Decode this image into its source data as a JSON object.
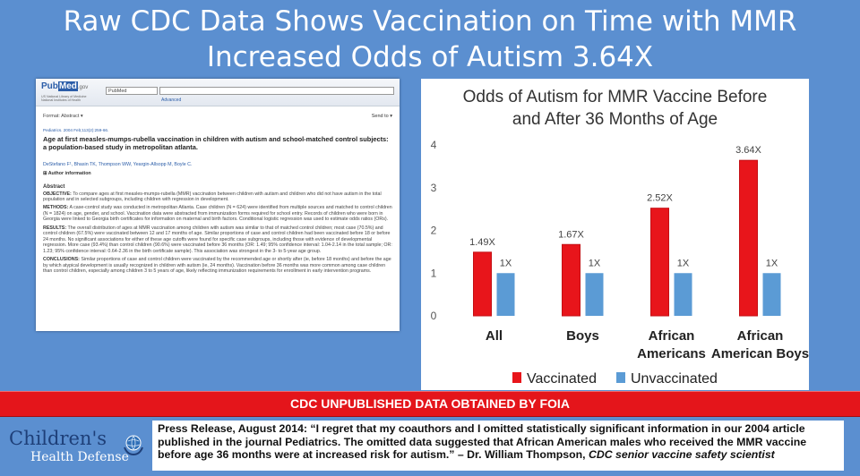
{
  "headline": "Raw CDC Data Shows Vaccination on Time with MMR Increased Odds of Autism 3.64X",
  "paper": {
    "logo_pub": "Pub",
    "logo_med": "Med",
    "logo_gov": ".gov",
    "nlm_line1": "US National Library of Medicine",
    "nlm_line2": "National Institutes of Health",
    "search_db": "PubMed",
    "advanced": "Advanced",
    "format": "Format: Abstract ▾",
    "send_to": "Send to ▾",
    "journal": "Pediatrics. 2004 Feb;113(2):259-66.",
    "title": "Age at first measles-mumps-rubella vaccination in children with autism and school-matched control subjects: a population-based study in metropolitan atlanta.",
    "authors": "DeStefano F¹, Bhasin TK, Thompson WW, Yeargin-Allsopp M, Boyle C.",
    "author_info": "⊞ Author information",
    "abstract_head": "Abstract",
    "objective_label": "OBJECTIVE:",
    "objective": "To compare ages at first measles-mumps-rubella (MMR) vaccination between children with autism and children who did not have autism in the total population and in selected subgroups, including children with regression in development.",
    "methods_label": "METHODS:",
    "methods": "A case-control study was conducted in metropolitan Atlanta. Case children (N = 624) were identified from multiple sources and matched to control children (N = 1824) on age, gender, and school. Vaccination data were abstracted from immunization forms required for school entry. Records of children who were born in Georgia were linked to Georgia birth certificates for information on maternal and birth factors. Conditional logistic regression was used to estimate odds ratios (ORs).",
    "results_label": "RESULTS:",
    "results": "The overall distribution of ages at MMR vaccination among children with autism was similar to that of matched control children; most case (70.5%) and control children (67.5%) were vaccinated between 12 and 17 months of age. Similar proportions of case and control children had been vaccinated before 18 or before 24 months. No significant associations for either of these age cutoffs were found for specific case subgroups, including those with evidence of developmental regression. More case (93.4%) than control children (90.6%) were vaccinated before 36 months (OR: 1.49; 95% confidence interval: 1.04-2.14 in the total sample; OR: 1.23; 95% confidence interval: 0.64-2.36 in the birth certificate sample). This association was strongest in the 3- to 5-year age group.",
    "conclusions_label": "CONCLUSIONS:",
    "conclusions": "Similar proportions of case and control children were vaccinated by the recommended age or shortly after (ie, before 18 months) and before the age by which atypical development is usually recognized in children with autism (ie, 24 months). Vaccination before 36 months was more common among case children than control children, especially among children 3 to 5 years of age, likely reflecting immunization requirements for enrollment in early intervention programs."
  },
  "chart_data": {
    "type": "bar",
    "title": "Odds of Autism for MMR Vaccine Before and After 36 Months of Age",
    "title_line1": "Odds of Autism for MMR Vaccine Before",
    "title_line2": "and After 36 Months of Age",
    "categories": [
      [
        "All"
      ],
      [
        "Boys"
      ],
      [
        "African",
        "Americans"
      ],
      [
        "African",
        "American Boys"
      ]
    ],
    "series": [
      {
        "name": "Vaccinated",
        "color": "#e8151b",
        "values": [
          1.49,
          1.67,
          2.52,
          3.64
        ],
        "labels": [
          "1.49X",
          "1.67X",
          "2.52X",
          "3.64X"
        ]
      },
      {
        "name": "Unvaccinated",
        "color": "#5b9bd5",
        "values": [
          1,
          1,
          1,
          1
        ],
        "labels": [
          "1X",
          "1X",
          "1X",
          "1X"
        ]
      }
    ],
    "ylim": [
      0,
      4
    ],
    "yticks": [
      0,
      1,
      2,
      3,
      4
    ],
    "grid": false,
    "legend": "bottom"
  },
  "banner": "CDC UNPUBLISHED DATA OBTAINED BY FOIA",
  "logo": {
    "line1": "Children's",
    "line2": "Health Defense"
  },
  "press": {
    "text": "Press Release, August 2014: “I regret that my coauthors and I omitted statistically significant information in our 2004 article published in the journal Pediatrics. The omitted data suggested that African American males who received the MMR vaccine before age 36 months were at increased risk for autism.” – Dr. William Thompson, ",
    "role": "CDC senior vaccine safety scientist"
  }
}
